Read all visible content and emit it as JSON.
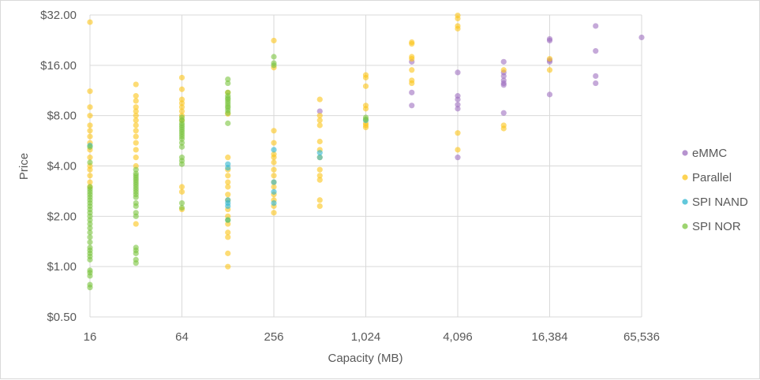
{
  "chart_data": {
    "type": "scatter",
    "title": "",
    "xlabel": "Capacity (MB)",
    "ylabel": "Price",
    "x_scale": "log2",
    "y_scale": "log2",
    "xlim": [
      16,
      65536
    ],
    "ylim": [
      0.5,
      32
    ],
    "x_ticks": [
      {
        "value": 16,
        "label": "16"
      },
      {
        "value": 64,
        "label": "64"
      },
      {
        "value": 256,
        "label": "256"
      },
      {
        "value": 1024,
        "label": "1,024"
      },
      {
        "value": 4096,
        "label": "4,096"
      },
      {
        "value": 16384,
        "label": "16,384"
      },
      {
        "value": 65536,
        "label": "65,536"
      }
    ],
    "y_ticks": [
      {
        "value": 0.5,
        "label": "$0.50"
      },
      {
        "value": 1,
        "label": "$1.00"
      },
      {
        "value": 2,
        "label": "$2.00"
      },
      {
        "value": 4,
        "label": "$4.00"
      },
      {
        "value": 8,
        "label": "$8.00"
      },
      {
        "value": 16,
        "label": "$16.00"
      },
      {
        "value": 32,
        "label": "$32.00"
      }
    ],
    "grid": true,
    "legend_position": "right",
    "series": [
      {
        "name": "eMMC",
        "color": "#9e6fbf",
        "points": [
          [
            512,
            8.5
          ],
          [
            2048,
            16.8
          ],
          [
            2048,
            11.0
          ],
          [
            2048,
            9.2
          ],
          [
            4096,
            14.5
          ],
          [
            4096,
            10.5
          ],
          [
            4096,
            10.0
          ],
          [
            4096,
            9.3
          ],
          [
            4096,
            8.8
          ],
          [
            4096,
            4.5
          ],
          [
            8192,
            16.8
          ],
          [
            8192,
            14.5
          ],
          [
            8192,
            13.8
          ],
          [
            8192,
            13.0
          ],
          [
            8192,
            12.5
          ],
          [
            8192,
            12.2
          ],
          [
            8192,
            8.3
          ],
          [
            16384,
            23.0
          ],
          [
            16384,
            22.5
          ],
          [
            16384,
            17.2
          ],
          [
            16384,
            16.8
          ],
          [
            16384,
            10.7
          ],
          [
            32768,
            27.5
          ],
          [
            32768,
            19.5
          ],
          [
            32768,
            13.8
          ],
          [
            32768,
            12.5
          ],
          [
            65536,
            23.5
          ]
        ]
      },
      {
        "name": "Parallel",
        "color": "#fcc419",
        "points": [
          [
            16,
            29.0
          ],
          [
            16,
            11.2
          ],
          [
            16,
            9.0
          ],
          [
            16,
            8.0
          ],
          [
            16,
            7.0
          ],
          [
            16,
            6.5
          ],
          [
            16,
            6.0
          ],
          [
            16,
            5.5
          ],
          [
            16,
            5.0
          ],
          [
            16,
            4.5
          ],
          [
            16,
            4.0
          ],
          [
            16,
            3.8
          ],
          [
            16,
            3.5
          ],
          [
            16,
            3.2
          ],
          [
            16,
            3.0
          ],
          [
            32,
            12.3
          ],
          [
            32,
            10.5
          ],
          [
            32,
            9.8
          ],
          [
            32,
            9.0
          ],
          [
            32,
            8.5
          ],
          [
            32,
            8.0
          ],
          [
            32,
            7.5
          ],
          [
            32,
            7.0
          ],
          [
            32,
            6.5
          ],
          [
            32,
            6.0
          ],
          [
            32,
            5.5
          ],
          [
            32,
            5.0
          ],
          [
            32,
            4.5
          ],
          [
            32,
            4.0
          ],
          [
            32,
            1.8
          ],
          [
            64,
            13.5
          ],
          [
            64,
            11.5
          ],
          [
            64,
            10.0
          ],
          [
            64,
            9.5
          ],
          [
            64,
            9.0
          ],
          [
            64,
            8.5
          ],
          [
            64,
            8.0
          ],
          [
            64,
            7.5
          ],
          [
            64,
            3.0
          ],
          [
            64,
            2.8
          ],
          [
            64,
            2.2
          ],
          [
            128,
            4.5
          ],
          [
            128,
            3.8
          ],
          [
            128,
            3.5
          ],
          [
            128,
            3.2
          ],
          [
            128,
            3.0
          ],
          [
            128,
            2.7
          ],
          [
            128,
            2.5
          ],
          [
            128,
            2.2
          ],
          [
            128,
            2.0
          ],
          [
            128,
            1.8
          ],
          [
            128,
            1.6
          ],
          [
            128,
            1.5
          ],
          [
            128,
            1.2
          ],
          [
            128,
            1.0
          ],
          [
            128,
            11.0
          ],
          [
            128,
            8.2
          ],
          [
            256,
            22.5
          ],
          [
            256,
            15.5
          ],
          [
            256,
            6.5
          ],
          [
            256,
            5.5
          ],
          [
            256,
            4.7
          ],
          [
            256,
            4.5
          ],
          [
            256,
            4.2
          ],
          [
            256,
            3.8
          ],
          [
            256,
            3.5
          ],
          [
            256,
            3.2
          ],
          [
            256,
            3.0
          ],
          [
            256,
            2.7
          ],
          [
            256,
            2.5
          ],
          [
            256,
            2.3
          ],
          [
            256,
            2.1
          ],
          [
            512,
            10.0
          ],
          [
            512,
            8.0
          ],
          [
            512,
            7.5
          ],
          [
            512,
            7.0
          ],
          [
            512,
            5.6
          ],
          [
            512,
            5.0
          ],
          [
            512,
            4.5
          ],
          [
            512,
            3.8
          ],
          [
            512,
            3.5
          ],
          [
            512,
            3.3
          ],
          [
            512,
            2.5
          ],
          [
            512,
            2.3
          ],
          [
            1024,
            14.0
          ],
          [
            1024,
            13.5
          ],
          [
            1024,
            12.0
          ],
          [
            1024,
            9.2
          ],
          [
            1024,
            8.8
          ],
          [
            1024,
            7.2
          ],
          [
            1024,
            7.0
          ],
          [
            1024,
            6.8
          ],
          [
            2048,
            22.0
          ],
          [
            2048,
            21.5
          ],
          [
            2048,
            18.0
          ],
          [
            2048,
            17.5
          ],
          [
            2048,
            15.0
          ],
          [
            2048,
            13.0
          ],
          [
            2048,
            12.5
          ],
          [
            4096,
            31.8
          ],
          [
            4096,
            30.5
          ],
          [
            4096,
            27.5
          ],
          [
            4096,
            26.5
          ],
          [
            4096,
            6.3
          ],
          [
            4096,
            5.0
          ],
          [
            8192,
            15.0
          ],
          [
            8192,
            7.0
          ],
          [
            8192,
            6.7
          ],
          [
            16384,
            17.5
          ],
          [
            16384,
            15.0
          ]
        ]
      },
      {
        "name": "SPI NAND",
        "color": "#2eb6cf",
        "points": [
          [
            16,
            5.3
          ],
          [
            128,
            4.1
          ],
          [
            128,
            3.9
          ],
          [
            128,
            2.5
          ],
          [
            128,
            2.4
          ],
          [
            128,
            2.3
          ],
          [
            128,
            1.9
          ],
          [
            256,
            5.0
          ],
          [
            256,
            3.2
          ],
          [
            256,
            2.8
          ],
          [
            256,
            2.4
          ],
          [
            512,
            4.8
          ],
          [
            512,
            4.5
          ],
          [
            1024,
            7.5
          ]
        ]
      },
      {
        "name": "SPI NOR",
        "color": "#7cc540",
        "points": [
          [
            16,
            5.2
          ],
          [
            16,
            4.2
          ],
          [
            16,
            3.0
          ],
          [
            16,
            2.9
          ],
          [
            16,
            2.8
          ],
          [
            16,
            2.7
          ],
          [
            16,
            2.6
          ],
          [
            16,
            2.5
          ],
          [
            16,
            2.4
          ],
          [
            16,
            2.3
          ],
          [
            16,
            2.2
          ],
          [
            16,
            2.1
          ],
          [
            16,
            2.0
          ],
          [
            16,
            1.9
          ],
          [
            16,
            1.8
          ],
          [
            16,
            1.7
          ],
          [
            16,
            1.6
          ],
          [
            16,
            1.5
          ],
          [
            16,
            1.4
          ],
          [
            16,
            1.3
          ],
          [
            16,
            1.25
          ],
          [
            16,
            1.2
          ],
          [
            16,
            1.15
          ],
          [
            16,
            1.1
          ],
          [
            16,
            0.95
          ],
          [
            16,
            0.92
          ],
          [
            16,
            0.88
          ],
          [
            16,
            0.78
          ],
          [
            16,
            0.75
          ],
          [
            32,
            3.8
          ],
          [
            32,
            3.6
          ],
          [
            32,
            3.5
          ],
          [
            32,
            3.4
          ],
          [
            32,
            3.3
          ],
          [
            32,
            3.2
          ],
          [
            32,
            3.1
          ],
          [
            32,
            3.0
          ],
          [
            32,
            2.9
          ],
          [
            32,
            2.8
          ],
          [
            32,
            2.7
          ],
          [
            32,
            2.6
          ],
          [
            32,
            2.4
          ],
          [
            32,
            2.3
          ],
          [
            32,
            2.1
          ],
          [
            32,
            2.0
          ],
          [
            32,
            1.3
          ],
          [
            32,
            1.25
          ],
          [
            32,
            1.2
          ],
          [
            32,
            1.1
          ],
          [
            32,
            1.05
          ],
          [
            64,
            7.8
          ],
          [
            64,
            7.5
          ],
          [
            64,
            7.2
          ],
          [
            64,
            7.0
          ],
          [
            64,
            6.8
          ],
          [
            64,
            6.6
          ],
          [
            64,
            6.4
          ],
          [
            64,
            6.2
          ],
          [
            64,
            6.0
          ],
          [
            64,
            5.8
          ],
          [
            64,
            5.5
          ],
          [
            64,
            5.2
          ],
          [
            64,
            4.5
          ],
          [
            64,
            4.3
          ],
          [
            64,
            4.1
          ],
          [
            64,
            2.4
          ],
          [
            64,
            2.25
          ],
          [
            128,
            13.2
          ],
          [
            128,
            12.5
          ],
          [
            128,
            11.0
          ],
          [
            128,
            10.5
          ],
          [
            128,
            10.2
          ],
          [
            128,
            10.0
          ],
          [
            128,
            9.7
          ],
          [
            128,
            9.4
          ],
          [
            128,
            9.1
          ],
          [
            128,
            8.9
          ],
          [
            128,
            8.6
          ],
          [
            128,
            8.3
          ],
          [
            128,
            7.2
          ],
          [
            128,
            1.9
          ],
          [
            256,
            18.0
          ],
          [
            256,
            16.5
          ],
          [
            256,
            16.0
          ],
          [
            1024,
            7.8
          ],
          [
            1024,
            7.6
          ]
        ]
      }
    ]
  }
}
